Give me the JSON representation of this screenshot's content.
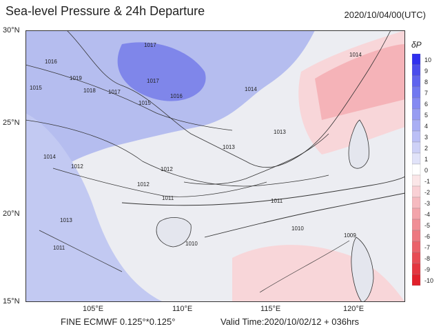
{
  "title": "Sea-level Pressure & 24h Departure",
  "timestamp": "2020/10/04/00(UTC)",
  "footer": {
    "model": "FINE ECMWF 0.125°*0.125°",
    "valid_time": "Valid Time:2020/10/02/12 + 036hrs"
  },
  "map": {
    "lat_labels": [
      "30°N",
      "25°N",
      "20°N",
      "15°N"
    ],
    "lon_labels": [
      "105°E",
      "110°E",
      "115°E",
      "120°E"
    ],
    "lon_range": [
      101,
      123.5
    ],
    "lat_range": [
      15,
      30
    ],
    "colors": {
      "positive_deep": "#7f86ea",
      "positive_mid": "#a7b1ee",
      "positive_light": "#cbd3f4",
      "neutral": "#ecedf2",
      "negative_light": "#f8d6d9",
      "negative_mid": "#f5b3b8"
    },
    "isobar_labels": [
      "1017",
      "1016",
      "1019",
      "1018",
      "1017",
      "1017",
      "1016",
      "1015",
      "1015",
      "1014",
      "1014",
      "1013",
      "1013",
      "1012",
      "1012",
      "1011",
      "1011",
      "1010",
      "1010",
      "1009",
      "1013",
      "1012",
      "1011",
      "1014"
    ]
  },
  "colorbar": {
    "label": "δP",
    "ticks": [
      "10",
      "9",
      "8",
      "7",
      "6",
      "5",
      "4",
      "3",
      "2",
      "1",
      "0",
      "-1",
      "-2",
      "-3",
      "-4",
      "-5",
      "-6",
      "-7",
      "-8",
      "-9",
      "-10"
    ],
    "colors": [
      "#3030ee",
      "#4a4cec",
      "#5f63ee",
      "#7178f0",
      "#8489f2",
      "#979cf2",
      "#a9aef4",
      "#bbbff6",
      "#ced1f7",
      "#e1e3f9",
      "#ffffff",
      "#fbe6e8",
      "#f9d0d5",
      "#f6bac0",
      "#f3a4ab",
      "#f08e96",
      "#ed7880",
      "#ea626b",
      "#e74c55",
      "#e43640",
      "#e1202b"
    ]
  }
}
